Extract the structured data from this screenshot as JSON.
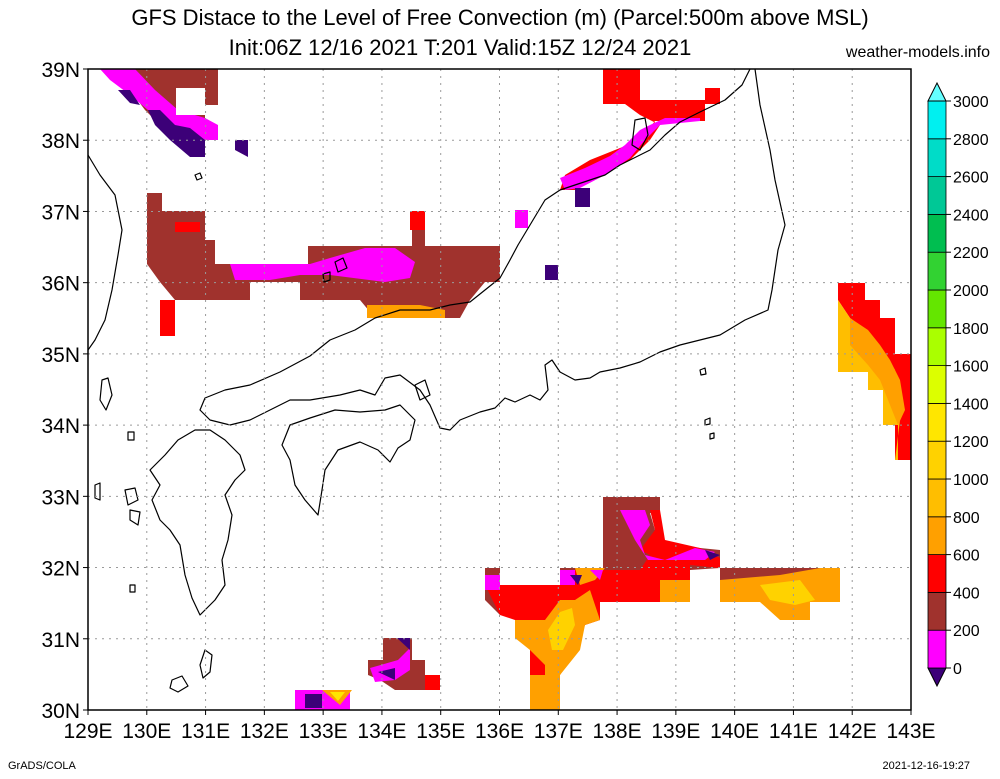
{
  "title": {
    "line1": "GFS Distace to the Level of Free Convection (m) (Parcel:500m above MSL)",
    "line2": "Init:06Z 12/16 2021 T:201 Valid:15Z 12/24 2021"
  },
  "credit": "weather-models.info",
  "footer": {
    "left": "GrADS/COLA",
    "right": "2021-12-16-19:27"
  },
  "map": {
    "lon_range": [
      129,
      143
    ],
    "lat_range": [
      30,
      39
    ],
    "lon_labels": [
      "129E",
      "130E",
      "131E",
      "132E",
      "133E",
      "134E",
      "135E",
      "136E",
      "137E",
      "138E",
      "139E",
      "140E",
      "141E",
      "142E",
      "143E"
    ],
    "lat_labels": [
      "30N",
      "31N",
      "32N",
      "33N",
      "34N",
      "35N",
      "36N",
      "37N",
      "38N",
      "39N"
    ],
    "grid": true
  },
  "colorbar": {
    "levels": [
      "0",
      "200",
      "400",
      "600",
      "800",
      "1000",
      "1200",
      "1400",
      "1600",
      "1800",
      "2000",
      "2200",
      "2400",
      "2600",
      "2800",
      "3000"
    ],
    "colors": [
      "#3c0078",
      "#ff00ff",
      "#a0322d",
      "#ff0000",
      "#ffa000",
      "#ffbe00",
      "#ffd200",
      "#ffe600",
      "#dcff00",
      "#aaff00",
      "#64e600",
      "#32d232",
      "#00be50",
      "#00c896",
      "#00dcc8",
      "#00f0f0",
      "#64ffff"
    ]
  }
}
